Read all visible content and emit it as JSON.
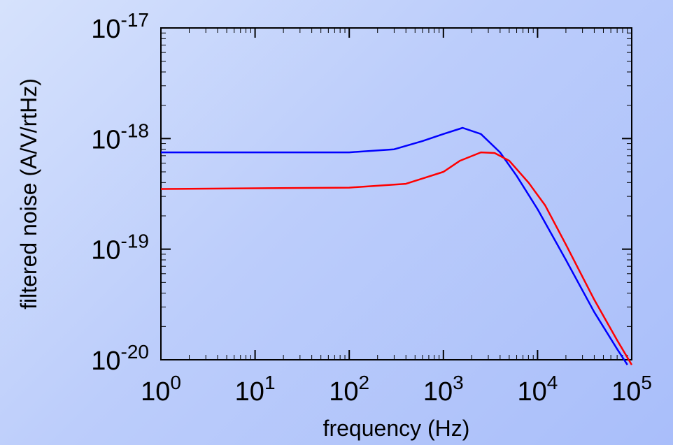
{
  "chart_data": {
    "type": "line",
    "xscale": "log",
    "yscale": "log",
    "xlabel": "frequency (Hz)",
    "ylabel": "filtered noise (A/V/rtHz)",
    "xlim": [
      1,
      100000
    ],
    "ylim": [
      1e-20,
      1e-17
    ],
    "x_tick_labels": [
      {
        "base": "10",
        "exp": "0"
      },
      {
        "base": "10",
        "exp": "1"
      },
      {
        "base": "10",
        "exp": "2"
      },
      {
        "base": "10",
        "exp": "3"
      },
      {
        "base": "10",
        "exp": "4"
      },
      {
        "base": "10",
        "exp": "5"
      }
    ],
    "y_tick_labels": [
      {
        "base": "10",
        "exp": "-20"
      },
      {
        "base": "10",
        "exp": "-19"
      },
      {
        "base": "10",
        "exp": "-18"
      },
      {
        "base": "10",
        "exp": "-17"
      }
    ],
    "grid": false,
    "series": [
      {
        "color": "#0000ff",
        "points": [
          [
            1,
            7.5e-19
          ],
          [
            100,
            7.5e-19
          ],
          [
            300,
            8e-19
          ],
          [
            600,
            9.5e-19
          ],
          [
            1000,
            1.1e-18
          ],
          [
            1600,
            1.25e-18
          ],
          [
            2500,
            1.1e-18
          ],
          [
            4000,
            7.5e-19
          ],
          [
            6000,
            4.6e-19
          ],
          [
            10000,
            2.3e-19
          ],
          [
            20000,
            8e-20
          ],
          [
            40000,
            2.7e-20
          ],
          [
            70000,
            1.25e-20
          ],
          [
            90000,
            9e-21
          ]
        ]
      },
      {
        "color": "#ff0000",
        "points": [
          [
            1,
            3.5e-19
          ],
          [
            100,
            3.6e-19
          ],
          [
            400,
            3.9e-19
          ],
          [
            1000,
            5e-19
          ],
          [
            1500,
            6.3e-19
          ],
          [
            2500,
            7.5e-19
          ],
          [
            3500,
            7.4e-19
          ],
          [
            5000,
            6.3e-19
          ],
          [
            8000,
            4e-19
          ],
          [
            12000,
            2.5e-19
          ],
          [
            20000,
            1.1e-19
          ],
          [
            40000,
            3.5e-20
          ],
          [
            70000,
            1.5e-20
          ],
          [
            100000,
            9e-21
          ]
        ]
      }
    ]
  }
}
